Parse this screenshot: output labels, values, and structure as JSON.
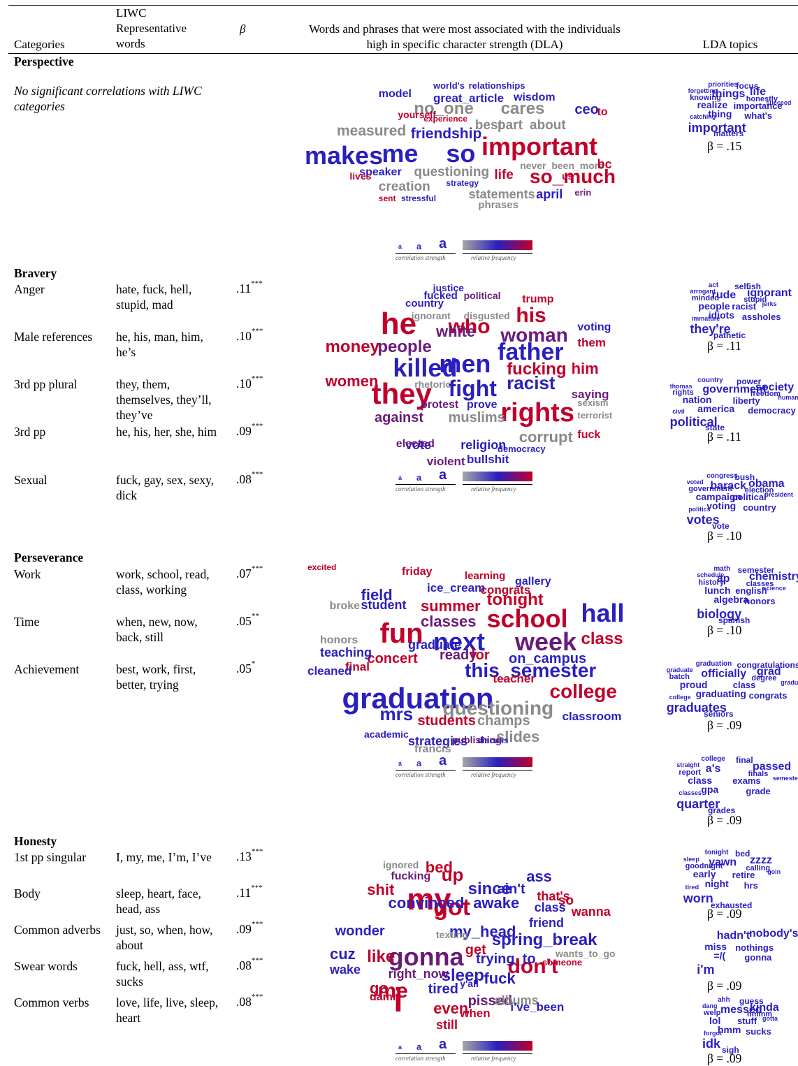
{
  "header": {
    "categories": "Categories",
    "liwc": "LIWC Representative words",
    "beta": "β",
    "dla": "Words and phrases that were most associated with the individuals high in specific character strength (DLA)",
    "lda": "LDA topics"
  },
  "legend": {
    "glyph": "a",
    "correlation": "correlation strength",
    "frequency": "relative frequency"
  },
  "sections": {
    "perspective": {
      "title": "Perspective",
      "note": "No significant correlations with LIWC categories",
      "topic_betas": [
        "β = .15"
      ]
    },
    "bravery": {
      "title": "Bravery",
      "rows": [
        {
          "cat": "Anger",
          "words": "hate, fuck, hell, stupid, mad",
          "beta": ".11",
          "sig": "***"
        },
        {
          "cat": "Male references",
          "words": "he, his, man, him, he’s",
          "beta": ".10",
          "sig": "***"
        },
        {
          "cat": "3rd pp plural",
          "words": "they, them, themselves, they’ll, they’ve",
          "beta": ".10",
          "sig": "***"
        },
        {
          "cat": "3rd pp",
          "words": "he, his, her, she, him",
          "beta": ".09",
          "sig": "***"
        },
        {
          "cat": "Sexual",
          "words": "fuck, gay, sex, sexy, dick",
          "beta": ".08",
          "sig": "***"
        }
      ],
      "topic_betas": [
        "β = .11",
        "β = .11",
        "β = .10"
      ]
    },
    "perseverance": {
      "title": "Perseverance",
      "rows": [
        {
          "cat": "Work",
          "words": "work, school, read, class, working",
          "beta": ".07",
          "sig": "***"
        },
        {
          "cat": "Time",
          "words": "when, new, now, back, still",
          "beta": ".05",
          "sig": "**"
        },
        {
          "cat": "Achievement",
          "words": "best, work, first, better, trying",
          "beta": ".05",
          "sig": "*"
        }
      ],
      "topic_betas": [
        "β = .10",
        "β = .09",
        "β = .09"
      ]
    },
    "honesty": {
      "title": "Honesty",
      "rows": [
        {
          "cat": "1st pp singular",
          "words": "I, my, me, I’m, I’ve",
          "beta": ".13",
          "sig": "***"
        },
        {
          "cat": "Body",
          "words": "sleep, heart, face, head, ass",
          "beta": ".11",
          "sig": "***"
        },
        {
          "cat": "Common adverbs",
          "words": "just, so, when, how, about",
          "beta": ".09",
          "sig": "***"
        },
        {
          "cat": "Swear words",
          "words": "fuck, hell, ass, wtf, sucks",
          "beta": ".08",
          "sig": "***"
        },
        {
          "cat": "Common verbs",
          "words": "love, life, live, sleep, heart",
          "beta": ".08",
          "sig": "***"
        }
      ],
      "topic_betas": [
        "β = .09",
        "β = .09",
        "β = .09"
      ]
    }
  },
  "colors": {
    "blue": "#2a1fbf",
    "red": "#c0002a",
    "purple": "#6a1a7a",
    "gray": "#8a8a8a"
  },
  "clouds": {
    "perspective": [
      [
        "makes",
        "#2a1fbf"
      ],
      [
        "me",
        "#2a1fbf"
      ],
      [
        "so",
        "#2a1fbf"
      ],
      [
        "important",
        "#c0002a"
      ],
      [
        "no_one",
        "#8a8a8a"
      ],
      [
        "cares",
        "#8a8a8a"
      ],
      [
        "ceo",
        "#2a1fbf"
      ],
      [
        "great_article",
        "#2a1fbf"
      ],
      [
        "wisdom",
        "#2a1fbf"
      ],
      [
        "model",
        "#2a1fbf"
      ],
      [
        "world's",
        "#2a1fbf"
      ],
      [
        "relationships",
        "#2a1fbf"
      ],
      [
        "measured",
        "#8a8a8a"
      ],
      [
        "friendship",
        "#2a1fbf"
      ],
      [
        "best",
        "#8a8a8a"
      ],
      [
        "part",
        "#8a8a8a"
      ],
      [
        "about",
        "#8a8a8a"
      ],
      [
        "to",
        "#c0002a"
      ],
      [
        "yourself",
        "#c0002a"
      ],
      [
        "experience",
        "#c0002a"
      ],
      [
        "speaker",
        "#2a1fbf"
      ],
      [
        "questioning",
        "#8a8a8a"
      ],
      [
        "life",
        "#c0002a"
      ],
      [
        "so_much",
        "#c0002a"
      ],
      [
        "creation",
        "#8a8a8a"
      ],
      [
        "statements",
        "#8a8a8a"
      ],
      [
        "april",
        "#2a1fbf"
      ],
      [
        "never_been_more",
        "#8a8a8a"
      ],
      [
        "bc",
        "#c0002a"
      ],
      [
        "lives",
        "#c0002a"
      ],
      [
        "phrases",
        "#8a8a8a"
      ],
      [
        "stressful",
        "#2a1fbf"
      ],
      [
        "sent",
        "#c0002a"
      ],
      [
        "strategy",
        "#2a1fbf"
      ],
      [
        "us",
        "#c0002a"
      ],
      [
        "erin",
        "#6a1a7a"
      ]
    ],
    "bravery": [
      [
        "he",
        "#c0002a"
      ],
      [
        "they",
        "#c0002a"
      ],
      [
        "killed",
        "#2a1fbf"
      ],
      [
        "men",
        "#2a1fbf"
      ],
      [
        "father",
        "#2a1fbf"
      ],
      [
        "rights",
        "#c0002a"
      ],
      [
        "his",
        "#c0002a"
      ],
      [
        "woman",
        "#6a1a7a"
      ],
      [
        "who",
        "#c0002a"
      ],
      [
        "white",
        "#6a1a7a"
      ],
      [
        "money",
        "#c0002a"
      ],
      [
        "people",
        "#6a1a7a"
      ],
      [
        "women",
        "#c0002a"
      ],
      [
        "fight",
        "#2a1fbf"
      ],
      [
        "racist",
        "#2a1fbf"
      ],
      [
        "fucking",
        "#c0002a"
      ],
      [
        "him",
        "#c0002a"
      ],
      [
        "against",
        "#6a1a7a"
      ],
      [
        "muslims",
        "#8a8a8a"
      ],
      [
        "corrupt",
        "#8a8a8a"
      ],
      [
        "vote",
        "#2a1fbf"
      ],
      [
        "religion",
        "#2a1fbf"
      ],
      [
        "violent",
        "#6a1a7a"
      ],
      [
        "bullshit",
        "#2a1fbf"
      ],
      [
        "saying",
        "#6a1a7a"
      ],
      [
        "them",
        "#c0002a"
      ],
      [
        "voting",
        "#2a1fbf"
      ],
      [
        "trump",
        "#c0002a"
      ],
      [
        "justice",
        "#2a1fbf"
      ],
      [
        "fucked",
        "#2a1fbf"
      ],
      [
        "political",
        "#6a1a7a"
      ],
      [
        "country",
        "#2a1fbf"
      ],
      [
        "ignorant",
        "#8a8a8a"
      ],
      [
        "disgusted",
        "#8a8a8a"
      ],
      [
        "protest",
        "#6a1a7a"
      ],
      [
        "prove",
        "#2a1fbf"
      ],
      [
        "rhetoric",
        "#8a8a8a"
      ],
      [
        "elected",
        "#6a1a7a"
      ],
      [
        "fuck",
        "#c0002a"
      ],
      [
        "democracy",
        "#2a1fbf"
      ],
      [
        "sexism",
        "#8a8a8a"
      ],
      [
        "terrorist",
        "#8a8a8a"
      ]
    ],
    "perseverance": [
      [
        "graduation",
        "#2a1fbf"
      ],
      [
        "fun",
        "#c0002a"
      ],
      [
        "next",
        "#2a1fbf"
      ],
      [
        "week",
        "#6a1a7a"
      ],
      [
        "school",
        "#c0002a"
      ],
      [
        "hall",
        "#2a1fbf"
      ],
      [
        "class",
        "#c0002a"
      ],
      [
        "summer",
        "#c0002a"
      ],
      [
        "tonight",
        "#c0002a"
      ],
      [
        "field",
        "#2a1fbf"
      ],
      [
        "classes",
        "#6a1a7a"
      ],
      [
        "this_semester",
        "#2a1fbf"
      ],
      [
        "college",
        "#c0002a"
      ],
      [
        "questioning",
        "#8a8a8a"
      ],
      [
        "mrs",
        "#2a1fbf"
      ],
      [
        "students",
        "#c0002a"
      ],
      [
        "champs",
        "#8a8a8a"
      ],
      [
        "slides",
        "#8a8a8a"
      ],
      [
        "concert",
        "#c0002a"
      ],
      [
        "ready",
        "#6a1a7a"
      ],
      [
        "for",
        "#c0002a"
      ],
      [
        "on_campus",
        "#2a1fbf"
      ],
      [
        "graduate",
        "#2a1fbf"
      ],
      [
        "student",
        "#2a1fbf"
      ],
      [
        "ice_cream",
        "#2a1fbf"
      ],
      [
        "congrats",
        "#c0002a"
      ],
      [
        "friday",
        "#c0002a"
      ],
      [
        "learning",
        "#c0002a"
      ],
      [
        "gallery",
        "#2a1fbf"
      ],
      [
        "final",
        "#c0002a"
      ],
      [
        "honors",
        "#8a8a8a"
      ],
      [
        "teaching",
        "#2a1fbf"
      ],
      [
        "cleaned",
        "#2a1fbf"
      ],
      [
        "teacher",
        "#c0002a"
      ],
      [
        "classroom",
        "#2a1fbf"
      ],
      [
        "strategies",
        "#2a1fbf"
      ],
      [
        "francis",
        "#8a8a8a"
      ],
      [
        "academic",
        "#2a1fbf"
      ],
      [
        "publishing",
        "#6a1a7a"
      ],
      [
        "discuss",
        "#2a1fbf"
      ],
      [
        "broke",
        "#8a8a8a"
      ],
      [
        "excited",
        "#c0002a"
      ]
    ],
    "honesty": [
      [
        "my",
        "#c0002a"
      ],
      [
        "i",
        "#c0002a"
      ],
      [
        "gonna",
        "#6a1a7a"
      ],
      [
        "got",
        "#c0002a"
      ],
      [
        "me",
        "#c0002a"
      ],
      [
        "like",
        "#c0002a"
      ],
      [
        "don't",
        "#c0002a"
      ],
      [
        "up",
        "#c0002a"
      ],
      [
        "since",
        "#2a1fbf"
      ],
      [
        "awake",
        "#2a1fbf"
      ],
      [
        "spring_break",
        "#2a1fbf"
      ],
      [
        "my_head",
        "#2a1fbf"
      ],
      [
        "sleep",
        "#2a1fbf"
      ],
      [
        "tired",
        "#2a1fbf"
      ],
      [
        "even",
        "#c0002a"
      ],
      [
        "pissed",
        "#6a1a7a"
      ],
      [
        "bed",
        "#c0002a"
      ],
      [
        "ass",
        "#2a1fbf"
      ],
      [
        "shit",
        "#c0002a"
      ],
      [
        "convinced",
        "#2a1fbf"
      ],
      [
        "ain't",
        "#2a1fbf"
      ],
      [
        "that's",
        "#c0002a"
      ],
      [
        "class",
        "#2a1fbf"
      ],
      [
        "friend",
        "#2a1fbf"
      ],
      [
        "wonder",
        "#2a1fbf"
      ],
      [
        "cuz",
        "#2a1fbf"
      ],
      [
        "go",
        "#c0002a"
      ],
      [
        "fuck",
        "#2a1fbf"
      ],
      [
        "trying_to",
        "#2a1fbf"
      ],
      [
        "get",
        "#c0002a"
      ],
      [
        "wake",
        "#2a1fbf"
      ],
      [
        "right_now",
        "#6a1a7a"
      ],
      [
        "albums",
        "#8a8a8a"
      ],
      [
        "still",
        "#c0002a"
      ],
      [
        "when",
        "#c0002a"
      ],
      [
        "i've_been",
        "#2a1fbf"
      ],
      [
        "wanna",
        "#c0002a"
      ],
      [
        "so",
        "#c0002a"
      ],
      [
        "fucking",
        "#6a1a7a"
      ],
      [
        "ignored",
        "#8a8a8a"
      ],
      [
        "damn",
        "#c0002a"
      ],
      [
        "texting",
        "#8a8a8a"
      ],
      [
        "y'all",
        "#2a1fbf"
      ],
      [
        "wants_to_go",
        "#8a8a8a"
      ],
      [
        "someone",
        "#c0002a"
      ]
    ]
  },
  "topics": {
    "perspective": [
      [
        "important",
        "#2a1fbf"
      ],
      [
        "things",
        "#2a1fbf"
      ],
      [
        "life",
        "#2a1fbf"
      ],
      [
        "realize",
        "#2a1fbf"
      ],
      [
        "importance",
        "#2a1fbf"
      ],
      [
        "thing",
        "#2a1fbf"
      ],
      [
        "what's",
        "#2a1fbf"
      ],
      [
        "matters",
        "#2a1fbf"
      ],
      [
        "focus",
        "#2a1fbf"
      ],
      [
        "honestly",
        "#2a1fbf"
      ],
      [
        "knowing",
        "#2a1fbf"
      ],
      [
        "priorities",
        "#2a1fbf"
      ],
      [
        "forgetting",
        "#2a1fbf"
      ],
      [
        "succeed",
        "#2a1fbf"
      ],
      [
        "catching",
        "#2a1fbf"
      ]
    ],
    "bravery_1": [
      [
        "they're",
        "#2a1fbf"
      ],
      [
        "rude",
        "#2a1fbf"
      ],
      [
        "ignorant",
        "#2a1fbf"
      ],
      [
        "people",
        "#2a1fbf"
      ],
      [
        "racist",
        "#2a1fbf"
      ],
      [
        "idiots",
        "#2a1fbf"
      ],
      [
        "assholes",
        "#2a1fbf"
      ],
      [
        "pathetic",
        "#2a1fbf"
      ],
      [
        "selfish",
        "#2a1fbf"
      ],
      [
        "stupid",
        "#2a1fbf"
      ],
      [
        "minded",
        "#2a1fbf"
      ],
      [
        "act",
        "#2a1fbf"
      ],
      [
        "arrogant",
        "#2a1fbf"
      ],
      [
        "jerks",
        "#2a1fbf"
      ],
      [
        "immature",
        "#2a1fbf"
      ]
    ],
    "bravery_2": [
      [
        "political",
        "#2a1fbf"
      ],
      [
        "government",
        "#2a1fbf"
      ],
      [
        "society",
        "#2a1fbf"
      ],
      [
        "nation",
        "#2a1fbf"
      ],
      [
        "liberty",
        "#2a1fbf"
      ],
      [
        "america",
        "#2a1fbf"
      ],
      [
        "democracy",
        "#2a1fbf"
      ],
      [
        "state",
        "#2a1fbf"
      ],
      [
        "power",
        "#2a1fbf"
      ],
      [
        "freedom",
        "#2a1fbf"
      ],
      [
        "rights",
        "#2a1fbf"
      ],
      [
        "country",
        "#2a1fbf"
      ],
      [
        "thomas",
        "#2a1fbf"
      ],
      [
        "human",
        "#2a1fbf"
      ],
      [
        "civil",
        "#2a1fbf"
      ]
    ],
    "bravery_3": [
      [
        "votes",
        "#2a1fbf"
      ],
      [
        "barack",
        "#2a1fbf"
      ],
      [
        "obama",
        "#2a1fbf"
      ],
      [
        "campaign",
        "#2a1fbf"
      ],
      [
        "political",
        "#2a1fbf"
      ],
      [
        "voting",
        "#2a1fbf"
      ],
      [
        "country",
        "#2a1fbf"
      ],
      [
        "vote",
        "#2a1fbf"
      ],
      [
        "bush",
        "#2a1fbf"
      ],
      [
        "election",
        "#2a1fbf"
      ],
      [
        "government",
        "#2a1fbf"
      ],
      [
        "congress",
        "#2a1fbf"
      ],
      [
        "voted",
        "#2a1fbf"
      ],
      [
        "president",
        "#2a1fbf"
      ],
      [
        "politics",
        "#2a1fbf"
      ]
    ],
    "perseverance_1": [
      [
        "biology",
        "#2a1fbf"
      ],
      [
        "ap",
        "#2a1fbf"
      ],
      [
        "chemistry",
        "#2a1fbf"
      ],
      [
        "lunch",
        "#2a1fbf"
      ],
      [
        "english",
        "#2a1fbf"
      ],
      [
        "algebra",
        "#2a1fbf"
      ],
      [
        "honors",
        "#2a1fbf"
      ],
      [
        "spanish",
        "#2a1fbf"
      ],
      [
        "semester",
        "#2a1fbf"
      ],
      [
        "classes",
        "#2a1fbf"
      ],
      [
        "history",
        "#2a1fbf"
      ],
      [
        "math",
        "#2a1fbf"
      ],
      [
        "schedule",
        "#2a1fbf"
      ],
      [
        "science",
        "#2a1fbf"
      ]
    ],
    "perseverance_2": [
      [
        "graduates",
        "#2a1fbf"
      ],
      [
        "officially",
        "#2a1fbf"
      ],
      [
        "grad",
        "#2a1fbf"
      ],
      [
        "proud",
        "#2a1fbf"
      ],
      [
        "class",
        "#2a1fbf"
      ],
      [
        "graduating",
        "#2a1fbf"
      ],
      [
        "congrats",
        "#2a1fbf"
      ],
      [
        "seniors",
        "#2a1fbf"
      ],
      [
        "congratulations",
        "#2a1fbf"
      ],
      [
        "degree",
        "#2a1fbf"
      ],
      [
        "batch",
        "#2a1fbf"
      ],
      [
        "graduation",
        "#2a1fbf"
      ],
      [
        "graduate",
        "#2a1fbf"
      ],
      [
        "graduated",
        "#2a1fbf"
      ],
      [
        "college",
        "#2a1fbf"
      ]
    ],
    "perseverance_3": [
      [
        "quarter",
        "#2a1fbf"
      ],
      [
        "a's",
        "#2a1fbf"
      ],
      [
        "passed",
        "#2a1fbf"
      ],
      [
        "class",
        "#2a1fbf"
      ],
      [
        "exams",
        "#2a1fbf"
      ],
      [
        "gpa",
        "#2a1fbf"
      ],
      [
        "grade",
        "#2a1fbf"
      ],
      [
        "grades",
        "#2a1fbf"
      ],
      [
        "final",
        "#2a1fbf"
      ],
      [
        "finals",
        "#2a1fbf"
      ],
      [
        "report",
        "#2a1fbf"
      ],
      [
        "college",
        "#2a1fbf"
      ],
      [
        "straight",
        "#2a1fbf"
      ],
      [
        "semester",
        "#2a1fbf"
      ],
      [
        "classes",
        "#2a1fbf"
      ]
    ],
    "honesty_1": [
      [
        "worn",
        "#2a1fbf"
      ],
      [
        "yawn",
        "#2a1fbf"
      ],
      [
        "zzzz",
        "#2a1fbf"
      ],
      [
        "early",
        "#2a1fbf"
      ],
      [
        "retire",
        "#2a1fbf"
      ],
      [
        "night",
        "#2a1fbf"
      ],
      [
        "hrs",
        "#2a1fbf"
      ],
      [
        "exhausted",
        "#2a1fbf"
      ],
      [
        "bed",
        "#2a1fbf"
      ],
      [
        "calling",
        "#2a1fbf"
      ],
      [
        "goodnight",
        "#2a1fbf"
      ],
      [
        "tonight",
        "#2a1fbf"
      ],
      [
        "sleep",
        "#2a1fbf"
      ],
      [
        "goin",
        "#2a1fbf"
      ],
      [
        "tired",
        "#2a1fbf"
      ]
    ],
    "honesty_2": [
      [
        "i'm",
        "#2a1fbf"
      ],
      [
        "hadn't",
        "#2a1fbf"
      ],
      [
        "nobody's",
        "#2a1fbf"
      ],
      [
        "miss",
        "#2a1fbf"
      ],
      [
        "nothings",
        "#2a1fbf"
      ],
      [
        "=/(",
        "#2a1fbf"
      ],
      [
        "gonna",
        "#2a1fbf"
      ]
    ],
    "honesty_3": [
      [
        "idk",
        "#2a1fbf"
      ],
      [
        "messed",
        "#2a1fbf"
      ],
      [
        "kinda",
        "#2a1fbf"
      ],
      [
        "lol",
        "#2a1fbf"
      ],
      [
        "stuff",
        "#2a1fbf"
      ],
      [
        "hmm",
        "#2a1fbf"
      ],
      [
        "sucks",
        "#2a1fbf"
      ],
      [
        "sigh",
        "#2a1fbf"
      ],
      [
        "guess",
        "#2a1fbf"
      ],
      [
        "hmmm",
        "#2a1fbf"
      ],
      [
        "welp",
        "#2a1fbf"
      ],
      [
        "ahh",
        "#2a1fbf"
      ],
      [
        "dang",
        "#2a1fbf"
      ],
      [
        "gotta",
        "#2a1fbf"
      ],
      [
        "forgot",
        "#2a1fbf"
      ]
    ]
  }
}
